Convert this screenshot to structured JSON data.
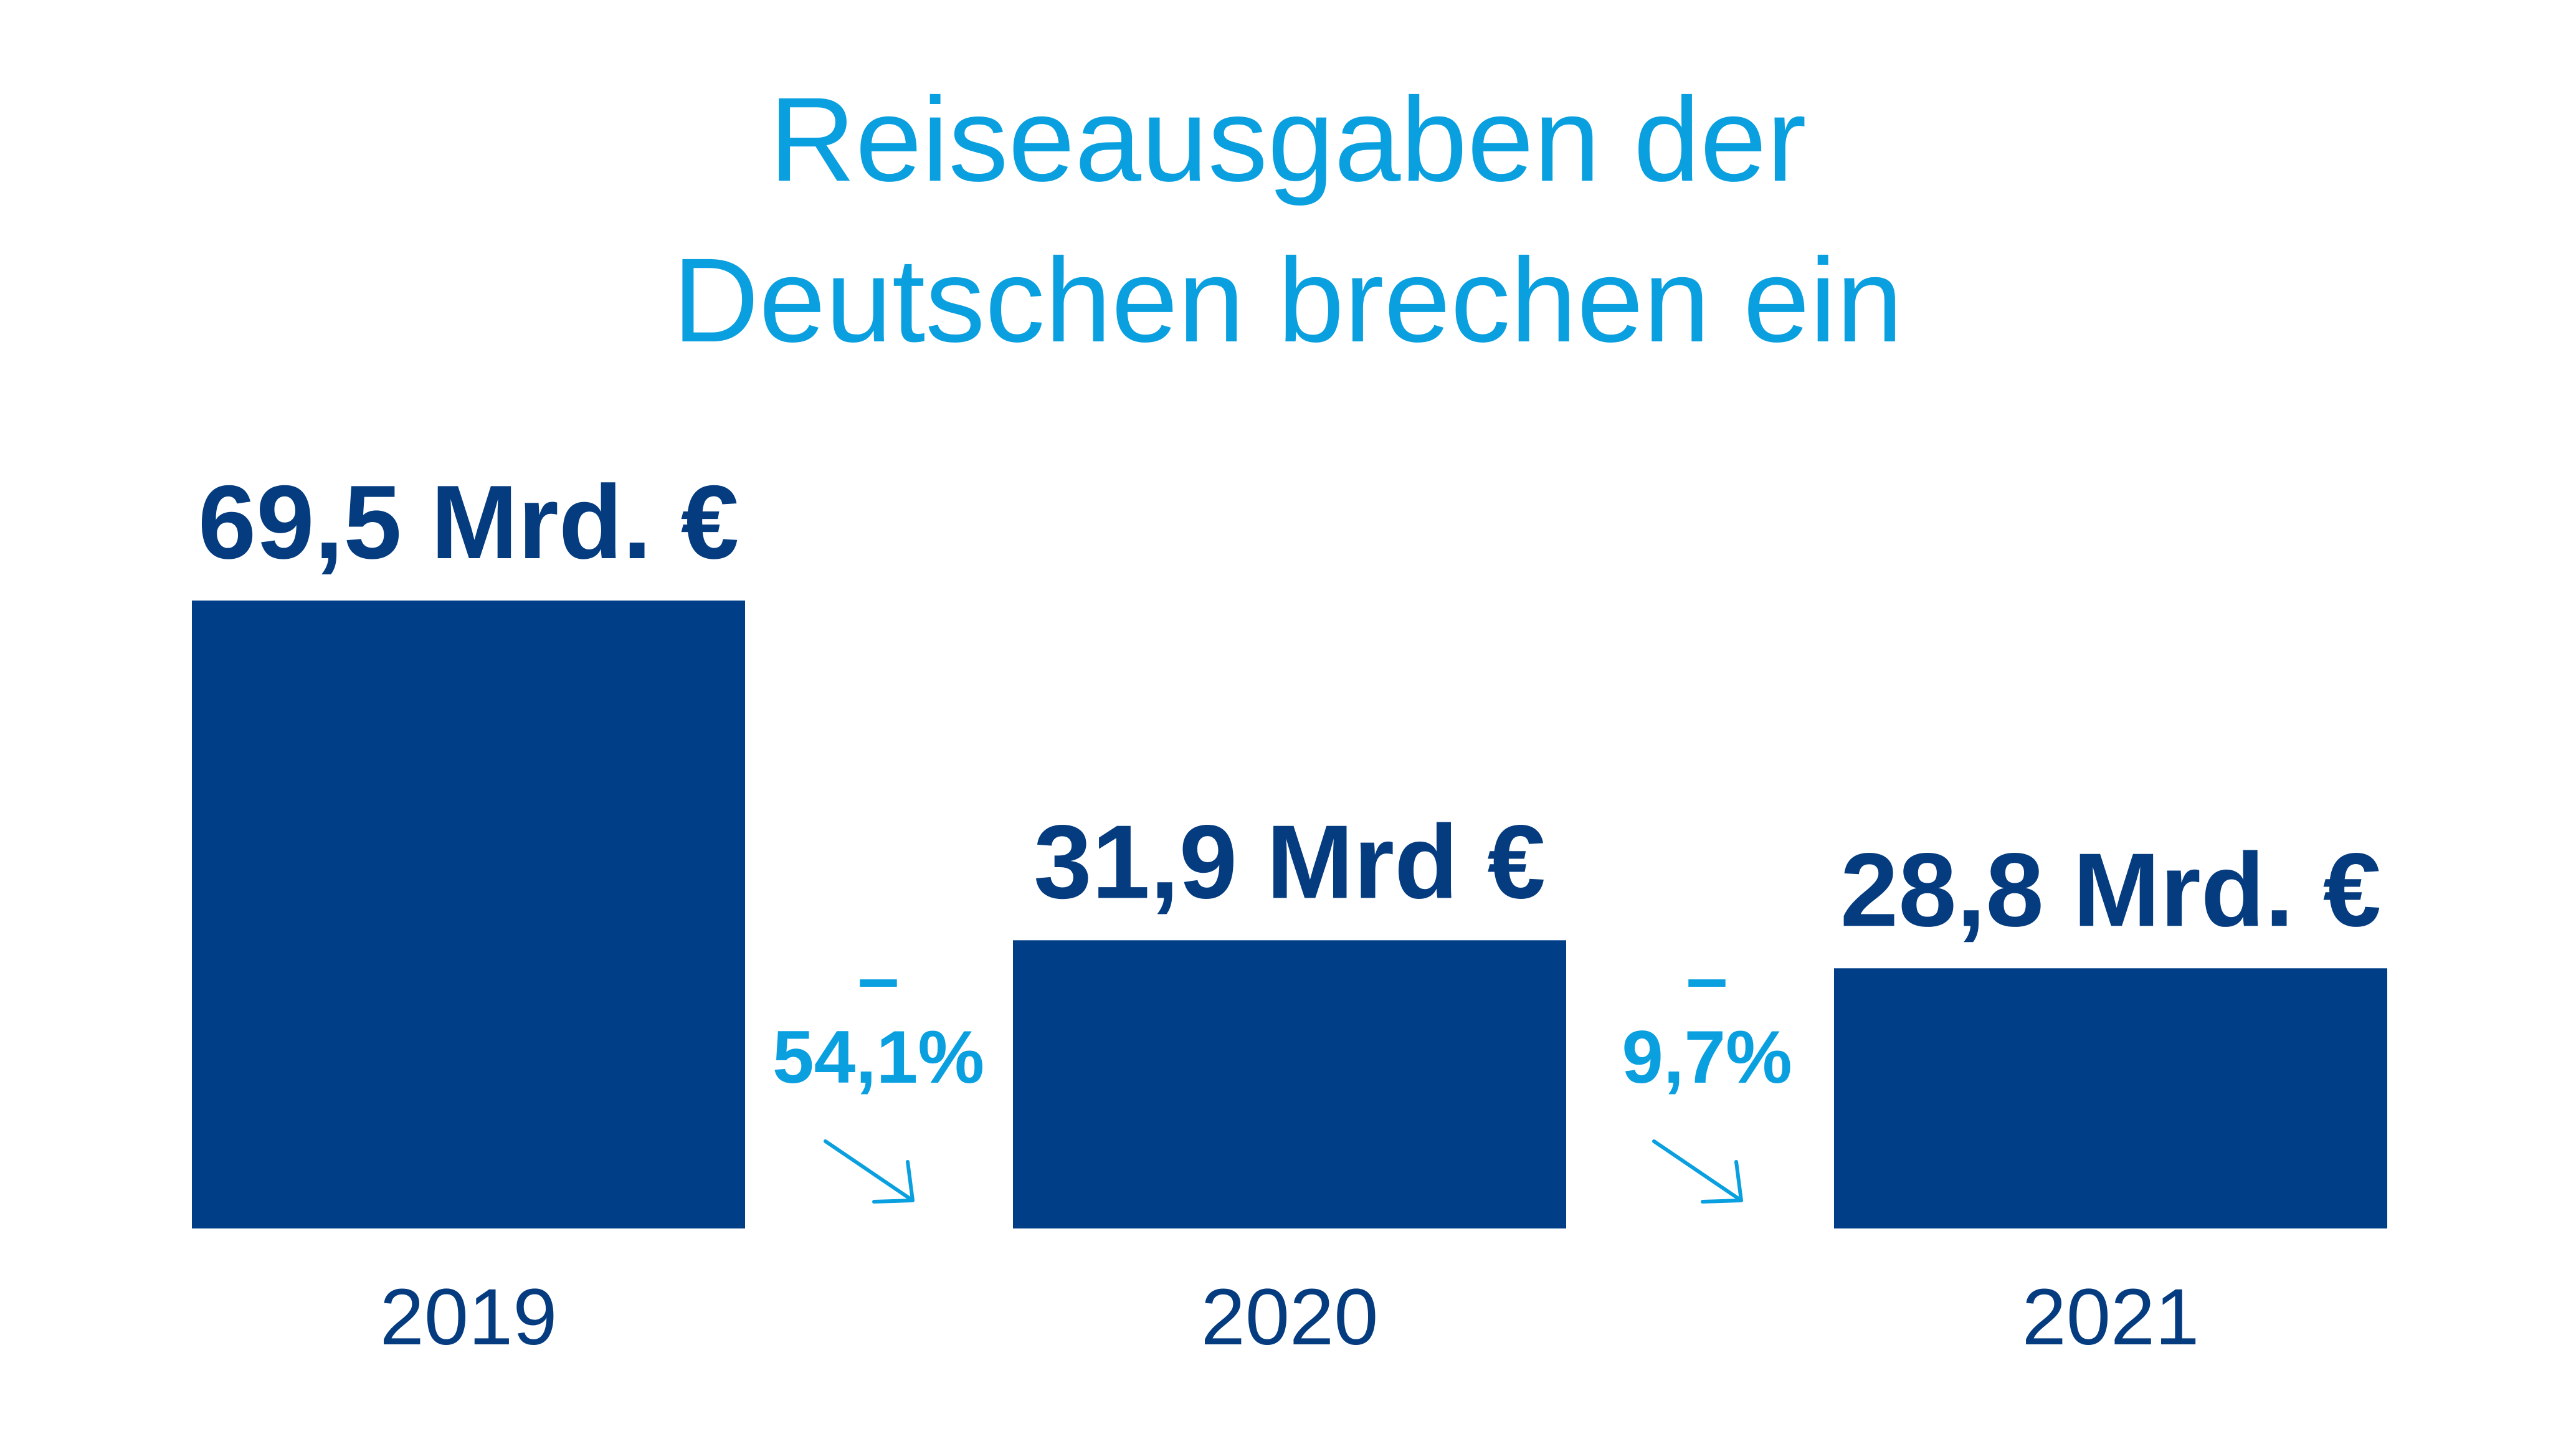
{
  "title": {
    "line1": "Reiseausgaben der",
    "line2": "Deutschen brechen ein"
  },
  "colors": {
    "bar": "#003f87",
    "value_text": "#053c7f",
    "accent": "#0aa0e0",
    "background": "#ffffff"
  },
  "chart_data": {
    "type": "bar",
    "title": "Reiseausgaben der Deutschen brechen ein",
    "categories": [
      "2019",
      "2020",
      "2021"
    ],
    "values": [
      69.5,
      31.9,
      28.8
    ],
    "unit": "Mrd. €",
    "value_labels": [
      "69,5 Mrd. €",
      "31,9 Mrd €",
      "28,8 Mrd. €"
    ],
    "changes": [
      {
        "from": "2019",
        "to": "2020",
        "label": "54,1%",
        "sign": "–"
      },
      {
        "from": "2020",
        "to": "2021",
        "label": "9,7%",
        "sign": "–"
      }
    ],
    "grid": false,
    "legend": "none",
    "ylim": [
      0,
      69.5
    ]
  }
}
